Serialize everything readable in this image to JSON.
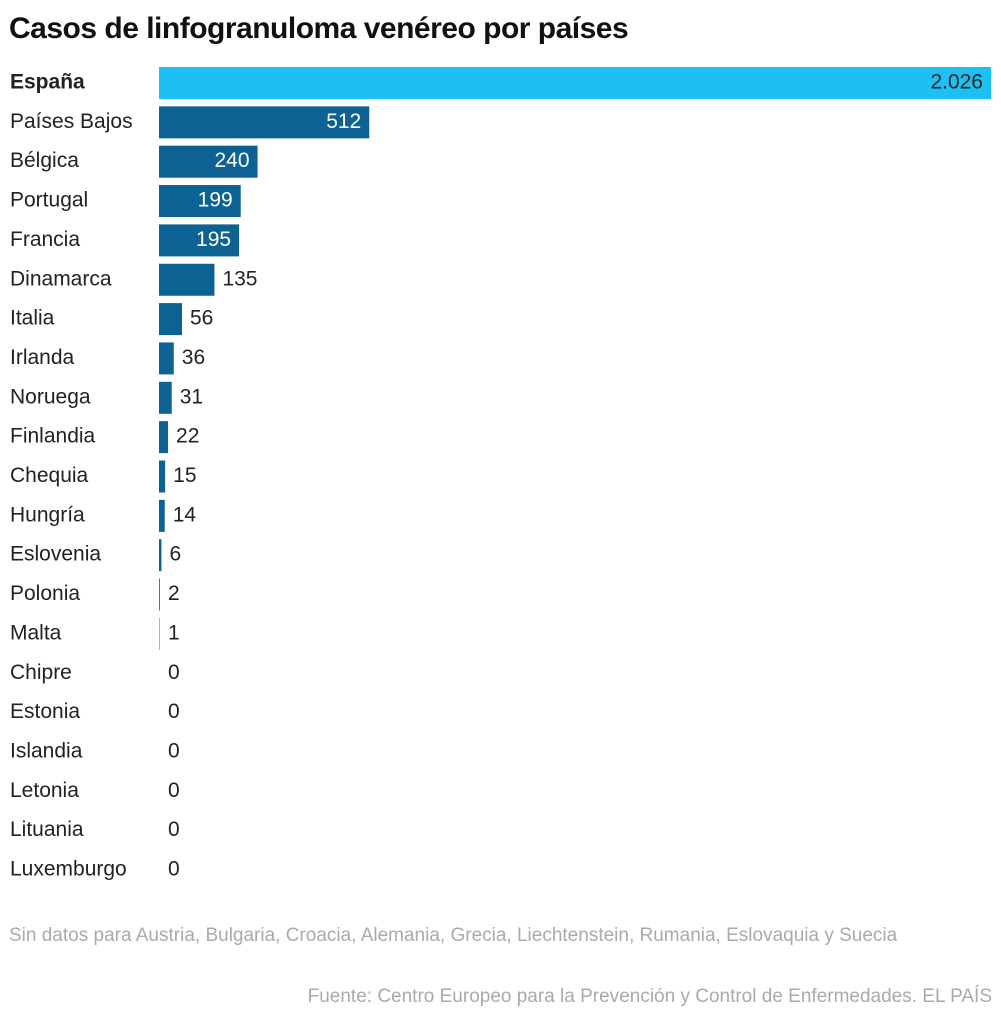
{
  "chart_data": {
    "type": "bar",
    "orientation": "horizontal",
    "title": "Casos de linfogranuloma venéreo por países",
    "categories": [
      "España",
      "Países Bajos",
      "Bélgica",
      "Portugal",
      "Francia",
      "Dinamarca",
      "Italia",
      "Irlanda",
      "Noruega",
      "Finlandia",
      "Chequia",
      "Hungría",
      "Eslovenia",
      "Polonia",
      "Malta",
      "Chipre",
      "Estonia",
      "Islandia",
      "Letonia",
      "Lituania",
      "Luxemburgo"
    ],
    "values": [
      2026,
      512,
      240,
      199,
      195,
      135,
      56,
      36,
      31,
      22,
      15,
      14,
      6,
      2,
      1,
      0,
      0,
      0,
      0,
      0,
      0
    ],
    "value_labels": [
      "2.026",
      "512",
      "240",
      "199",
      "195",
      "135",
      "56",
      "36",
      "31",
      "22",
      "15",
      "14",
      "6",
      "2",
      "1",
      "0",
      "0",
      "0",
      "0",
      "0",
      "0"
    ],
    "color": "#0c6292",
    "highlight_color": "#1cc0f2",
    "colors": [
      "#1cc0f2",
      "#0c6292",
      "#0c6292",
      "#0c6292",
      "#0c6292",
      "#0c6292",
      "#0c6292",
      "#0c6292",
      "#0c6292",
      "#0c6292",
      "#0c6292",
      "#0c6292",
      "#0c6292",
      "#0c6292",
      "#0c6292",
      "#0c6292",
      "#0c6292",
      "#0c6292",
      "#0c6292",
      "#0c6292",
      "#0c6292"
    ],
    "note": "Sin datos para Austria, Bulgaria, Croacia, Alemania, Grecia, Liechtenstein, Rumania, Eslovaquia y Suecia",
    "source": "Fuente: Centro Europeo para la Prevención y Control de Enfermedades. EL PAÍS"
  }
}
